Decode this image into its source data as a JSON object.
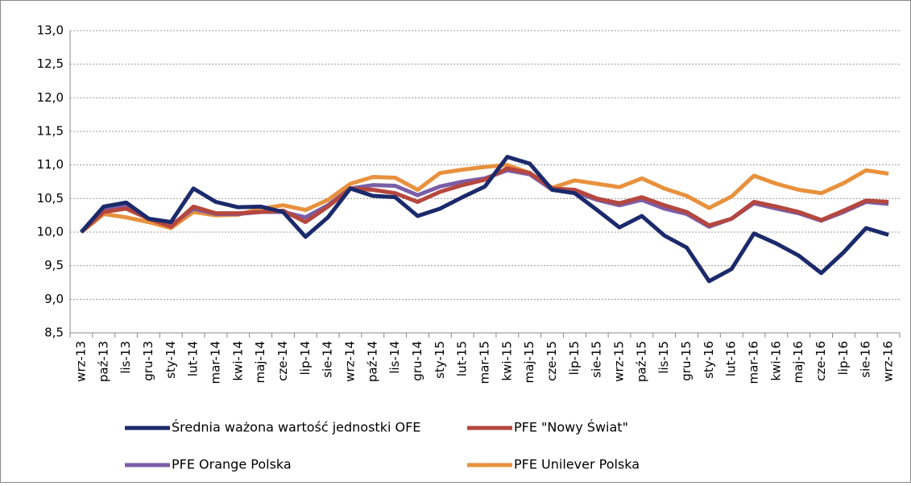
{
  "chart_data": {
    "type": "line",
    "categories": [
      "wrz-13",
      "paź-13",
      "lis-13",
      "gru-13",
      "sty-14",
      "lut-14",
      "mar-14",
      "kwi-14",
      "maj-14",
      "cze-14",
      "lip-14",
      "sie-14",
      "wrz-14",
      "paź-14",
      "lis-14",
      "gru-14",
      "sty-15",
      "lut-15",
      "mar-15",
      "kwi-15",
      "maj-15",
      "cze-15",
      "lip-15",
      "sie-15",
      "wrz-15",
      "paź-15",
      "lis-15",
      "gru-15",
      "sty-16",
      "lut-16",
      "mar-16",
      "kwi-16",
      "maj-16",
      "cze-16",
      "lip-16",
      "sie-16",
      "wrz-16"
    ],
    "series": [
      {
        "name": "Średnia ważona wartość jednostki OFE",
        "color": "#1b2a6b",
        "values": [
          10.0,
          10.38,
          10.44,
          10.2,
          10.15,
          10.65,
          10.45,
          10.37,
          10.38,
          10.3,
          9.93,
          10.22,
          10.65,
          10.54,
          10.52,
          10.24,
          10.35,
          10.52,
          10.68,
          11.12,
          11.02,
          10.63,
          10.58,
          10.33,
          10.07,
          10.24,
          9.95,
          9.77,
          9.27,
          9.45,
          9.98,
          9.83,
          9.65,
          9.39,
          9.7,
          10.06,
          9.96
        ]
      },
      {
        "name": "PFE \"Nowy Świat\"",
        "color": "#b5473f",
        "values": [
          10.0,
          10.3,
          10.35,
          10.2,
          10.08,
          10.38,
          10.28,
          10.28,
          10.3,
          10.32,
          10.15,
          10.38,
          10.65,
          10.63,
          10.58,
          10.45,
          10.6,
          10.7,
          10.78,
          10.95,
          10.88,
          10.65,
          10.63,
          10.5,
          10.43,
          10.52,
          10.4,
          10.3,
          10.1,
          10.2,
          10.45,
          10.38,
          10.3,
          10.18,
          10.32,
          10.47,
          10.45
        ]
      },
      {
        "name": "PFE Orange Polska",
        "color": "#7b5ea7",
        "values": [
          10.0,
          10.35,
          10.38,
          10.2,
          10.1,
          10.35,
          10.27,
          10.27,
          10.3,
          10.3,
          10.22,
          10.4,
          10.65,
          10.7,
          10.69,
          10.55,
          10.68,
          10.75,
          10.8,
          10.92,
          10.86,
          10.63,
          10.6,
          10.48,
          10.4,
          10.48,
          10.35,
          10.27,
          10.08,
          10.2,
          10.43,
          10.35,
          10.28,
          10.17,
          10.3,
          10.45,
          10.42
        ]
      },
      {
        "name": "PFE Unilever Polska",
        "color": "#e8913d",
        "values": [
          10.0,
          10.27,
          10.22,
          10.15,
          10.06,
          10.3,
          10.25,
          10.26,
          10.35,
          10.4,
          10.33,
          10.48,
          10.72,
          10.82,
          10.81,
          10.63,
          10.88,
          10.93,
          10.97,
          11.0,
          10.88,
          10.66,
          10.77,
          10.72,
          10.67,
          10.8,
          10.65,
          10.54,
          10.36,
          10.53,
          10.84,
          10.72,
          10.63,
          10.58,
          10.73,
          10.92,
          10.87
        ]
      }
    ],
    "ylim": [
      8.5,
      13.0
    ],
    "yticks": [
      {
        "value": 8.5,
        "label": "8,5"
      },
      {
        "value": 9.0,
        "label": "9,0"
      },
      {
        "value": 9.5,
        "label": "9,5"
      },
      {
        "value": 10.0,
        "label": "10,0"
      },
      {
        "value": 10.5,
        "label": "10,5"
      },
      {
        "value": 11.0,
        "label": "11,0"
      },
      {
        "value": 11.5,
        "label": "11,5"
      },
      {
        "value": 12.0,
        "label": "12,0"
      },
      {
        "value": 12.5,
        "label": "12,5"
      },
      {
        "value": 13.0,
        "label": "13,0"
      }
    ],
    "grid": true,
    "legend": "bottom"
  }
}
